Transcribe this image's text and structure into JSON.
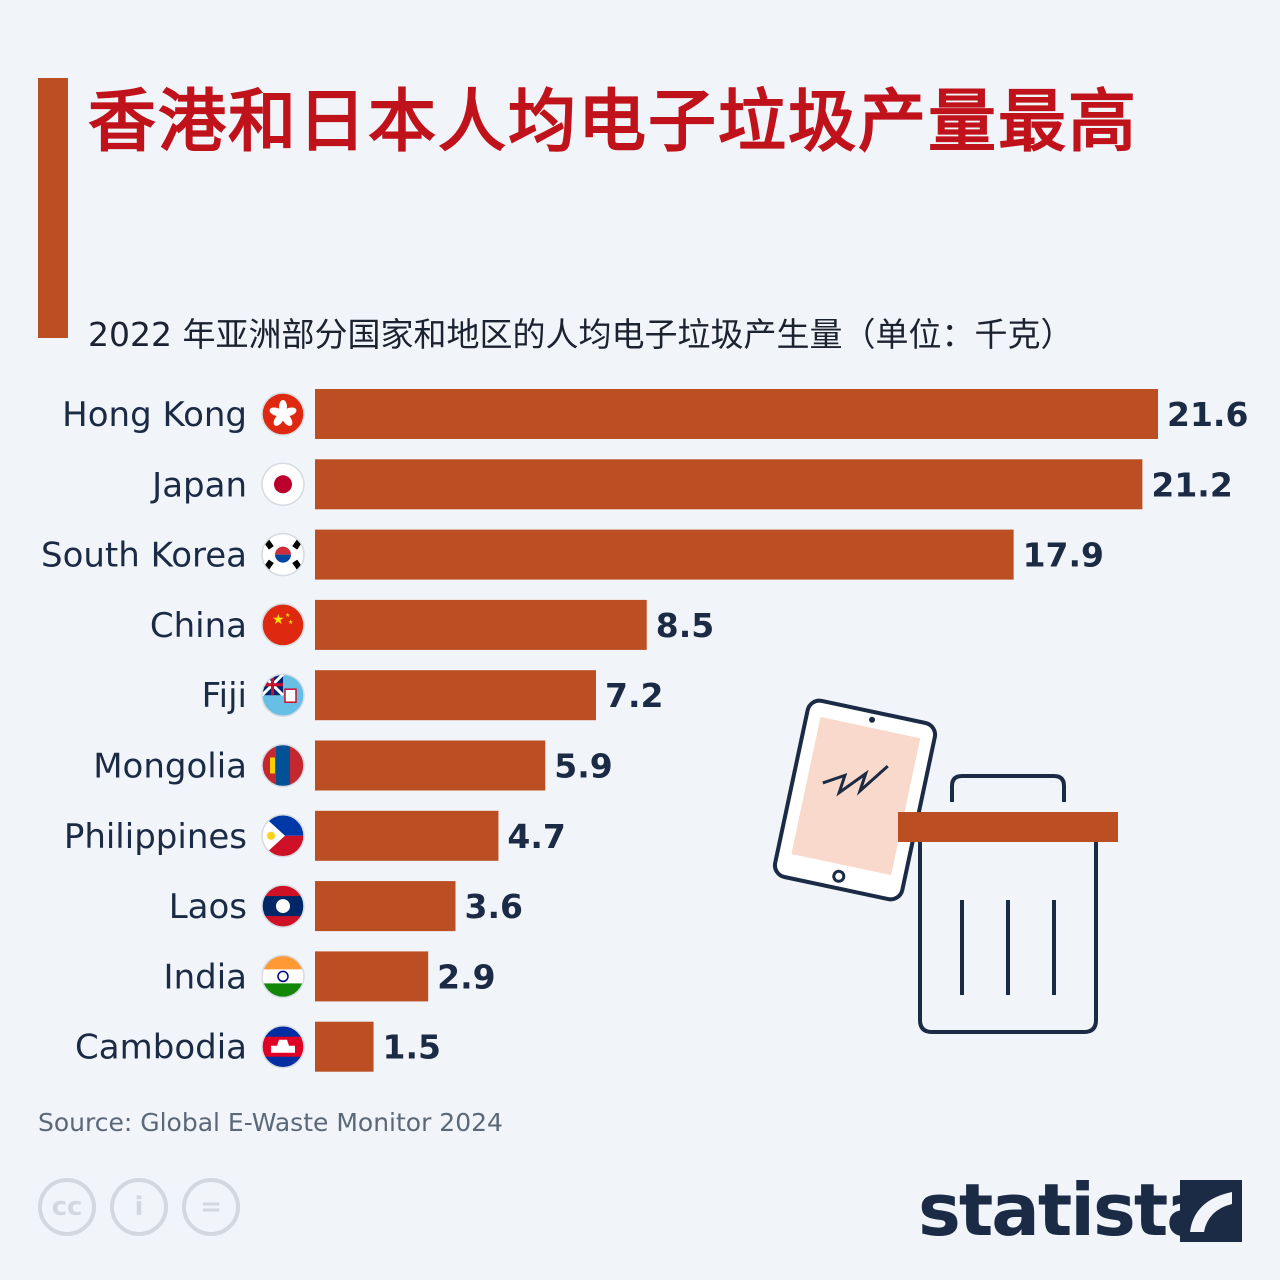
{
  "title": "香港和日本人均电子垃圾产量最高",
  "subtitle": "2022 年亚洲部分国家和地区的人均电子垃圾产生量（单位：千克）",
  "source": "Source: Global E-Waste Monitor 2024",
  "brand": "statista",
  "license_icons": [
    "cc",
    "i",
    "="
  ],
  "colors": {
    "bar": "#bb4e22",
    "title": "#c0121b",
    "text": "#1b2b45",
    "background": "#f1f4f8"
  },
  "flags": [
    "hong-kong-flag-icon",
    "japan-flag-icon",
    "south-korea-flag-icon",
    "china-flag-icon",
    "fiji-flag-icon",
    "mongolia-flag-icon",
    "philippines-flag-icon",
    "laos-flag-icon",
    "india-flag-icon",
    "cambodia-flag-icon"
  ],
  "chart_data": {
    "type": "bar",
    "orientation": "horizontal",
    "title": "香港和日本人均电子垃圾产量最高",
    "subtitle": "2022 年亚洲部分国家和地区的人均电子垃圾产生量（单位：千克）",
    "categories": [
      "Hong Kong",
      "Japan",
      "South Korea",
      "China",
      "Fiji",
      "Mongolia",
      "Philippines",
      "Laos",
      "India",
      "Cambodia"
    ],
    "values": [
      21.6,
      21.2,
      17.9,
      8.5,
      7.2,
      5.9,
      4.7,
      3.6,
      2.9,
      1.5
    ],
    "value_labels": [
      "21.6",
      "21.2",
      "17.9",
      "8.5",
      "7.2",
      "5.9",
      "4.7",
      "3.6",
      "2.9",
      "1.5"
    ],
    "xlim": [
      0,
      21.6
    ],
    "grid": false,
    "legend": "none"
  }
}
